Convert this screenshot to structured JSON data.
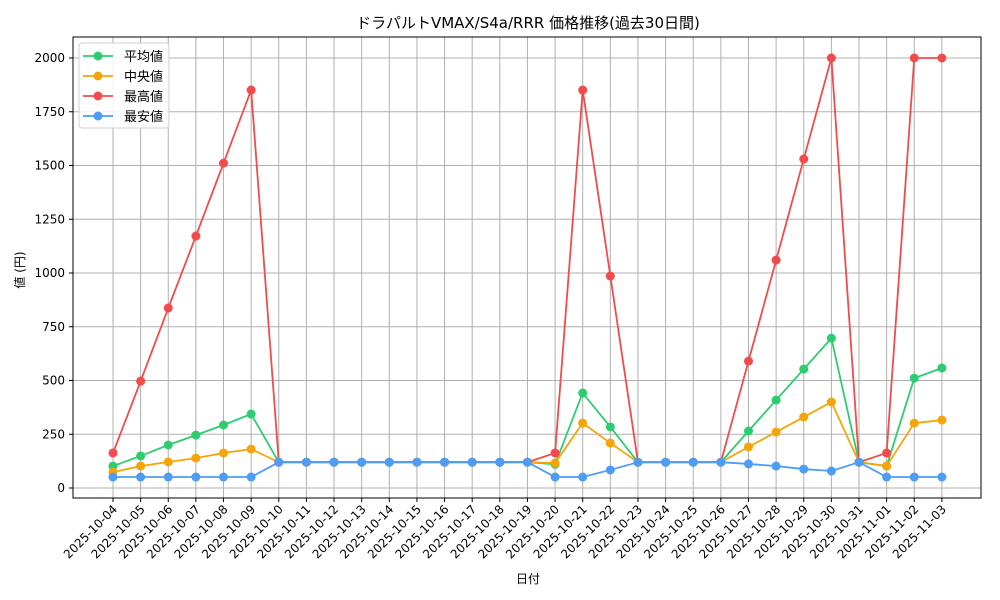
{
  "chart_data": {
    "type": "line",
    "title": "ドラパルトVMAX/S4a/RRR 価格推移(過去30日間)",
    "xlabel": "日付",
    "ylabel": "値 (円)",
    "ylim": [
      -40,
      2100
    ],
    "yticks": [
      0,
      250,
      500,
      750,
      1000,
      1250,
      1500,
      1750,
      2000
    ],
    "grid": true,
    "legend_position": "upper left",
    "categories": [
      "2025-10-04",
      "2025-10-05",
      "2025-10-06",
      "2025-10-07",
      "2025-10-08",
      "2025-10-09",
      "2025-10-10",
      "2025-10-11",
      "2025-10-12",
      "2025-10-13",
      "2025-10-14",
      "2025-10-15",
      "2025-10-16",
      "2025-10-17",
      "2025-10-18",
      "2025-10-19",
      "2025-10-20",
      "2025-10-21",
      "2025-10-22",
      "2025-10-23",
      "2025-10-24",
      "2025-10-25",
      "2025-10-26",
      "2025-10-27",
      "2025-10-28",
      "2025-10-29",
      "2025-10-30",
      "2025-10-31",
      "2025-11-01",
      "2025-11-02",
      "2025-11-03"
    ],
    "series": [
      {
        "name": "平均値",
        "color": "#2ecc71",
        "values": [
          102,
          149,
          200,
          246,
          293,
          344,
          120,
          120,
          120,
          120,
          120,
          120,
          120,
          120,
          120,
          120,
          110,
          442,
          284,
          120,
          120,
          120,
          120,
          265,
          409,
          553,
          697,
          120,
          102,
          511,
          558
        ]
      },
      {
        "name": "中央値",
        "color": "#f5a50a",
        "values": [
          74,
          102,
          121,
          139,
          163,
          181,
          120,
          120,
          120,
          120,
          120,
          120,
          120,
          120,
          120,
          120,
          116,
          302,
          209,
          120,
          120,
          120,
          120,
          191,
          260,
          330,
          400,
          120,
          102,
          302,
          316
        ]
      },
      {
        "name": "最高値",
        "color": "#f24b4b",
        "values": [
          163,
          497,
          837,
          1172,
          1511,
          1851,
          120,
          120,
          120,
          120,
          120,
          120,
          120,
          120,
          120,
          120,
          163,
          1851,
          986,
          120,
          120,
          120,
          120,
          590,
          1060,
          1530,
          2000,
          120,
          163,
          2000,
          2000
        ]
      },
      {
        "name": "最安値",
        "color": "#4d9cf5",
        "values": [
          51,
          51,
          51,
          51,
          51,
          51,
          120,
          120,
          120,
          120,
          120,
          120,
          120,
          120,
          120,
          120,
          51,
          51,
          84,
          120,
          120,
          120,
          120,
          112,
          102,
          88,
          79,
          120,
          51,
          51,
          51
        ]
      }
    ]
  }
}
